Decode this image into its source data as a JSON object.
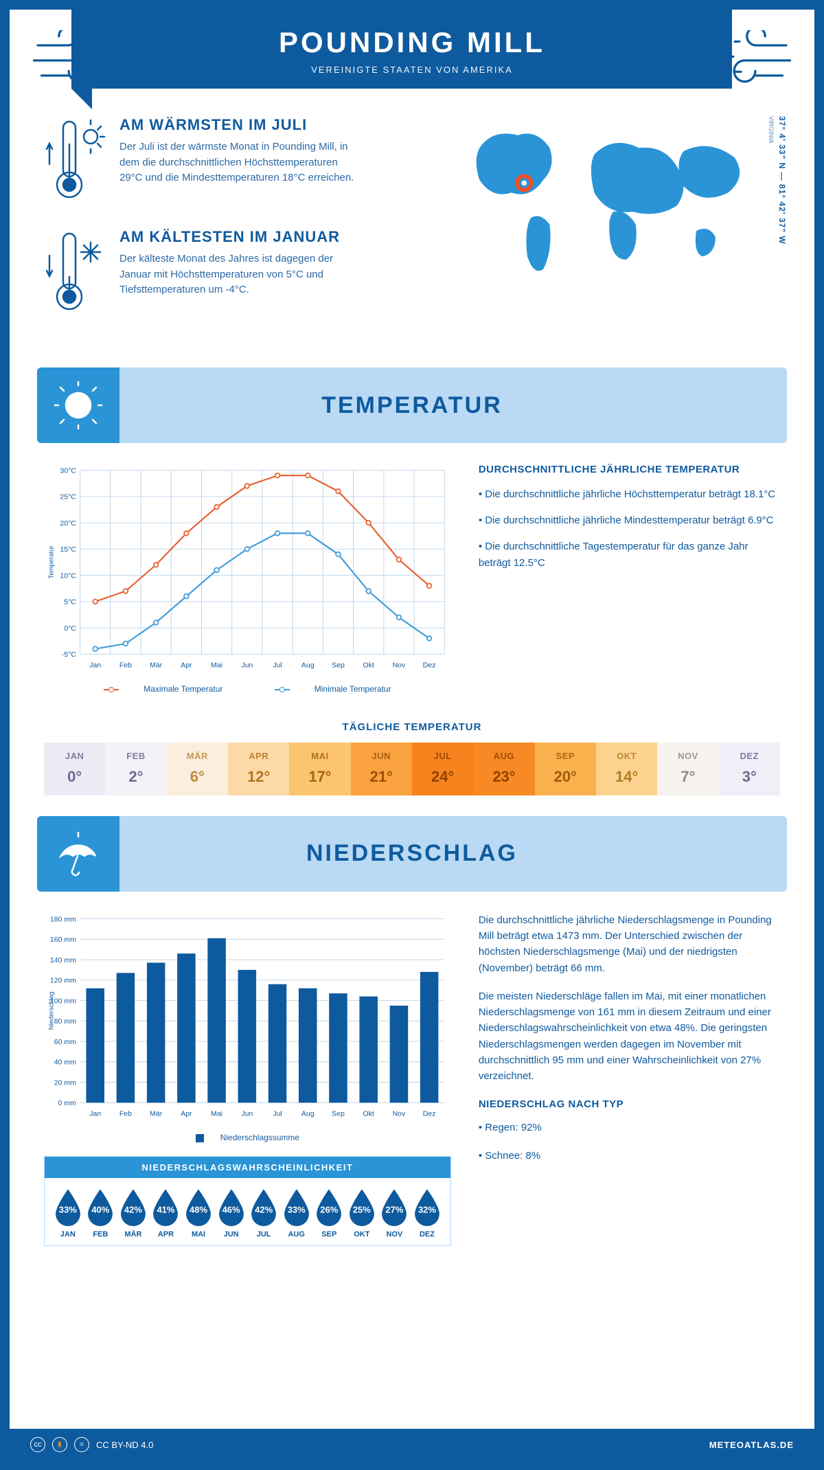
{
  "header": {
    "title": "POUNDING MILL",
    "subtitle": "VEREINIGTE STAATEN VON AMERIKA"
  },
  "location": {
    "coords": "37° 4' 33\" N — 81° 42' 37\" W",
    "region": "VIRGINIA",
    "marker_color": "#f04e23"
  },
  "warmest": {
    "title": "AM WÄRMSTEN IM JULI",
    "text": "Der Juli ist der wärmste Monat in Pounding Mill, in dem die durchschnittlichen Höchsttemperaturen 29°C und die Mindesttemperaturen 18°C erreichen."
  },
  "coldest": {
    "title": "AM KÄLTESTEN IM JANUAR",
    "text": "Der kälteste Monat des Jahres ist dagegen der Januar mit Höchsttemperaturen von 5°C und Tiefsttemperaturen um -4°C."
  },
  "temperature": {
    "banner": "TEMPERATUR",
    "months": [
      "Jan",
      "Feb",
      "Mär",
      "Apr",
      "Mai",
      "Jun",
      "Jul",
      "Aug",
      "Sep",
      "Okt",
      "Nov",
      "Dez"
    ],
    "max_series": [
      5,
      7,
      12,
      18,
      23,
      27,
      29,
      29,
      26,
      20,
      13,
      8
    ],
    "min_series": [
      -4,
      -3,
      1,
      6,
      11,
      15,
      18,
      18,
      14,
      7,
      2,
      -2
    ],
    "max_color": "#e85c2a",
    "min_color": "#3b9ad9",
    "y_min": -5,
    "y_max": 30,
    "y_step": 5,
    "y_unit": "°C",
    "y_axis_label": "Temperatur",
    "legend_max": "Maximale Temperatur",
    "legend_min": "Minimale Temperatur",
    "info_title": "DURCHSCHNITTLICHE JÄHRLICHE TEMPERATUR",
    "info_1": "• Die durchschnittliche jährliche Höchsttemperatur beträgt 18.1°C",
    "info_2": "• Die durchschnittliche jährliche Mindesttemperatur beträgt 6.9°C",
    "info_3": "• Die durchschnittliche Tagestemperatur für das ganze Jahr beträgt 12.5°C"
  },
  "daily_temp": {
    "title": "TÄGLICHE TEMPERATUR",
    "months": [
      "JAN",
      "FEB",
      "MÄR",
      "APR",
      "MAI",
      "JUN",
      "JUL",
      "AUG",
      "SEP",
      "OKT",
      "NOV",
      "DEZ"
    ],
    "values": [
      "0°",
      "2°",
      "6°",
      "12°",
      "17°",
      "21°",
      "24°",
      "23°",
      "20°",
      "14°",
      "7°",
      "3°"
    ],
    "bg_colors": [
      "#edeaf4",
      "#f4f1f8",
      "#fbeedc",
      "#fcd9a6",
      "#fbc46f",
      "#f9a23f",
      "#f6831d",
      "#f78a24",
      "#f9b14d",
      "#fbd28e",
      "#f7f3ee",
      "#f1eef7"
    ],
    "text_colors": [
      "#6f6890",
      "#6f6890",
      "#b88a3e",
      "#b27623",
      "#a86210",
      "#9a510a",
      "#8f4300",
      "#8f4300",
      "#a05a0c",
      "#b27b25",
      "#8c8694",
      "#6f6890"
    ]
  },
  "precipitation": {
    "banner": "NIEDERSCHLAG",
    "months": [
      "Jan",
      "Feb",
      "Mär",
      "Apr",
      "Mai",
      "Jun",
      "Jul",
      "Aug",
      "Sep",
      "Okt",
      "Nov",
      "Dez"
    ],
    "values": [
      112,
      127,
      137,
      146,
      161,
      130,
      116,
      112,
      107,
      104,
      95,
      128
    ],
    "bar_color": "#0e5a9e",
    "y_max": 180,
    "y_step": 20,
    "y_unit": "mm",
    "y_axis_label": "Niederschlag",
    "legend": "Niederschlagssumme",
    "para1": "Die durchschnittliche jährliche Niederschlagsmenge in Pounding Mill beträgt etwa 1473 mm. Der Unterschied zwischen der höchsten Niederschlagsmenge (Mai) und der niedrigsten (November) beträgt 66 mm.",
    "para2": "Die meisten Niederschläge fallen im Mai, mit einer monatlichen Niederschlagsmenge von 161 mm in diesem Zeitraum und einer Niederschlagswahrscheinlichkeit von etwa 48%. Die geringsten Niederschlagsmengen werden dagegen im November mit durchschnittlich 95 mm und einer Wahrscheinlichkeit von 27% verzeichnet.",
    "type_title": "NIEDERSCHLAG NACH TYP",
    "type_1": "• Regen: 92%",
    "type_2": "• Schnee: 8%"
  },
  "probability": {
    "title": "NIEDERSCHLAGSWAHRSCHEINLICHKEIT",
    "months": [
      "JAN",
      "FEB",
      "MÄR",
      "APR",
      "MAI",
      "JUN",
      "JUL",
      "AUG",
      "SEP",
      "OKT",
      "NOV",
      "DEZ"
    ],
    "values": [
      "33%",
      "40%",
      "42%",
      "41%",
      "48%",
      "46%",
      "42%",
      "33%",
      "26%",
      "25%",
      "27%",
      "32%"
    ],
    "drop_color": "#0e5a9e"
  },
  "footer": {
    "license": "CC BY-ND 4.0",
    "brand": "METEOATLAS.DE"
  },
  "colors": {
    "primary": "#0e5a9e",
    "light_blue": "#b9d9f4",
    "med_blue": "#2a94d6"
  }
}
